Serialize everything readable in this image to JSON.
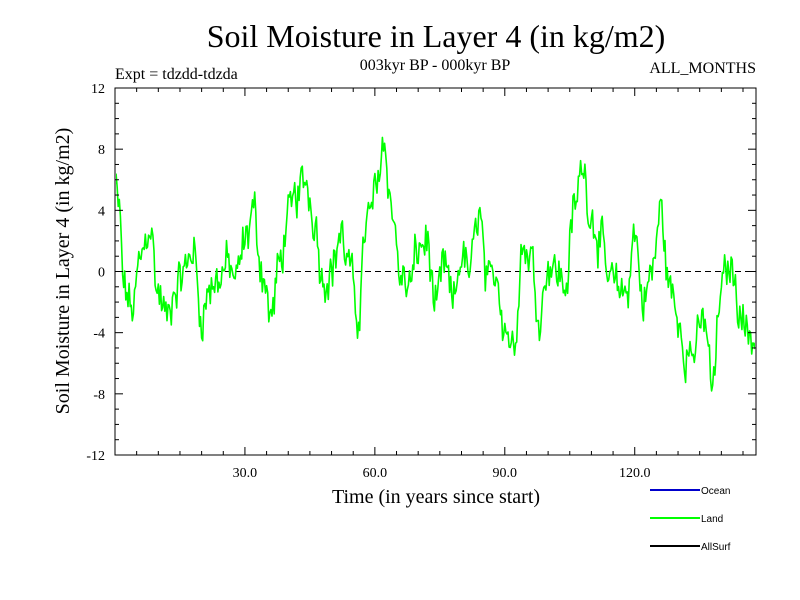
{
  "chart_data": {
    "type": "line",
    "title": "Soil Moisture in Layer 4 (in kg/m2)",
    "subtitle": "003kyr BP - 000kyr BP",
    "experiment": "Expt = tdzdd-tdzda",
    "months": "ALL_MONTHS",
    "xlabel": "Time (in years since start)",
    "ylabel": "Soil Moisture in Layer 4 (in kg/m2)",
    "xlim": [
      0,
      148
    ],
    "ylim": [
      -12,
      12
    ],
    "x_ticks": [
      "30.0",
      "60.0",
      "90.0",
      "120.0"
    ],
    "x_tick_values": [
      30,
      60,
      90,
      120
    ],
    "y_ticks": [
      "12",
      "8",
      "4",
      "0",
      "-4",
      "-8",
      "-12"
    ],
    "y_tick_values": [
      12,
      8,
      4,
      0,
      -4,
      -8,
      -12
    ],
    "zero_line": 0,
    "sample_step_years": 0.25,
    "series": [
      {
        "name": "Ocean",
        "color": "#0000cc",
        "values": []
      },
      {
        "name": "Land",
        "color": "#00ff00",
        "anchor_x": [
          0,
          1,
          2,
          4,
          6,
          8,
          10,
          12,
          14,
          16,
          18,
          20,
          22,
          24,
          26,
          28,
          30,
          32,
          34,
          36,
          38,
          40,
          42,
          44,
          46,
          48,
          50,
          52,
          54,
          56,
          58,
          60,
          62,
          64,
          66,
          68,
          70,
          72,
          74,
          76,
          78,
          80,
          82,
          84,
          86,
          88,
          90,
          92,
          94,
          96,
          98,
          100,
          102,
          104,
          106,
          108,
          110,
          112,
          114,
          116,
          118,
          120,
          122,
          124,
          126,
          128,
          130,
          132,
          134,
          136,
          138,
          140,
          142,
          144,
          146,
          148
        ],
        "anchor_y": [
          5.5,
          4.0,
          -1.0,
          -2.5,
          1.0,
          3.0,
          -1.5,
          -3.0,
          -1.0,
          0.0,
          1.5,
          -3.0,
          -1.0,
          -0.5,
          0.5,
          -0.5,
          2.0,
          4.0,
          0.0,
          -3.0,
          0.5,
          3.5,
          5.0,
          6.0,
          3.5,
          -0.5,
          0.0,
          2.5,
          0.5,
          -3.0,
          3.0,
          5.0,
          8.5,
          4.0,
          -0.5,
          -1.0,
          1.5,
          2.0,
          -2.5,
          0.5,
          -2.0,
          1.0,
          0.0,
          4.0,
          -1.0,
          0.0,
          -3.5,
          -5.0,
          1.5,
          1.0,
          -3.0,
          0.5,
          0.0,
          -1.0,
          4.0,
          7.0,
          3.5,
          2.0,
          -0.5,
          -1.0,
          -1.5,
          2.5,
          -2.0,
          0.0,
          4.0,
          -1.0,
          -3.0,
          -5.5,
          -5.0,
          -3.0,
          -7.5,
          -1.0,
          0.5,
          -2.0,
          -4.0,
          -4.5
        ],
        "noise_amplitude": 1.6
      },
      {
        "name": "AllSurf",
        "color": "#000000",
        "values": []
      }
    ]
  }
}
